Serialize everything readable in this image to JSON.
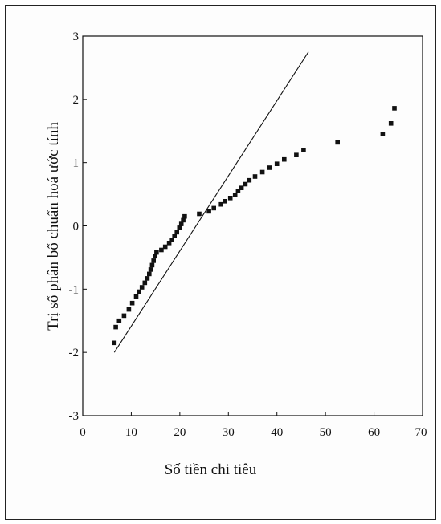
{
  "chart_data": {
    "type": "scatter",
    "title": "",
    "xlabel": "Số tiền chi tiêu",
    "ylabel": "Trị số phân bố chuẩn hoá ước tính",
    "xlim": [
      0,
      70
    ],
    "ylim": [
      -3,
      3
    ],
    "xticks": [
      0,
      10,
      20,
      30,
      40,
      50,
      60,
      70
    ],
    "xtick_labels": [
      "0",
      "10",
      "20",
      "30",
      "40",
      "50",
      "60",
      "70"
    ],
    "yticks": [
      -3,
      -2,
      -1,
      0,
      1,
      2,
      3
    ],
    "ytick_labels": [
      "-3",
      "-2",
      "-1",
      "0",
      "1",
      "2",
      "3"
    ],
    "grid": false,
    "legend": "none",
    "marker_color": "#111111",
    "series": [
      {
        "points": [
          [
            6.5,
            -1.85
          ],
          [
            6.8,
            -1.6
          ],
          [
            7.5,
            -1.5
          ],
          [
            8.5,
            -1.42
          ],
          [
            9.5,
            -1.32
          ],
          [
            10.2,
            -1.22
          ],
          [
            11.0,
            -1.12
          ],
          [
            11.6,
            -1.04
          ],
          [
            12.2,
            -0.97
          ],
          [
            12.8,
            -0.9
          ],
          [
            13.3,
            -0.83
          ],
          [
            13.7,
            -0.76
          ],
          [
            14.0,
            -0.69
          ],
          [
            14.3,
            -0.62
          ],
          [
            14.6,
            -0.55
          ],
          [
            14.9,
            -0.48
          ],
          [
            15.2,
            -0.42
          ],
          [
            16.2,
            -0.38
          ],
          [
            17.0,
            -0.33
          ],
          [
            17.8,
            -0.27
          ],
          [
            18.4,
            -0.22
          ],
          [
            18.9,
            -0.16
          ],
          [
            19.4,
            -0.1
          ],
          [
            19.9,
            -0.03
          ],
          [
            20.3,
            0.03
          ],
          [
            20.7,
            0.09
          ],
          [
            21.0,
            0.15
          ],
          [
            24.0,
            0.19
          ],
          [
            26.0,
            0.23
          ],
          [
            27.0,
            0.28
          ],
          [
            28.5,
            0.34
          ],
          [
            29.3,
            0.39
          ],
          [
            30.4,
            0.44
          ],
          [
            31.4,
            0.49
          ],
          [
            32.0,
            0.55
          ],
          [
            32.7,
            0.6
          ],
          [
            33.5,
            0.66
          ],
          [
            34.3,
            0.72
          ],
          [
            35.5,
            0.78
          ],
          [
            37.0,
            0.85
          ],
          [
            38.5,
            0.92
          ],
          [
            40.0,
            0.98
          ],
          [
            41.5,
            1.05
          ],
          [
            44.0,
            1.12
          ],
          [
            45.5,
            1.2
          ],
          [
            52.5,
            1.32
          ],
          [
            61.8,
            1.45
          ],
          [
            63.5,
            1.62
          ],
          [
            64.2,
            1.86
          ]
        ]
      }
    ],
    "reference_line": {
      "from": [
        6.5,
        -2.0
      ],
      "to": [
        46.5,
        2.75
      ]
    }
  }
}
